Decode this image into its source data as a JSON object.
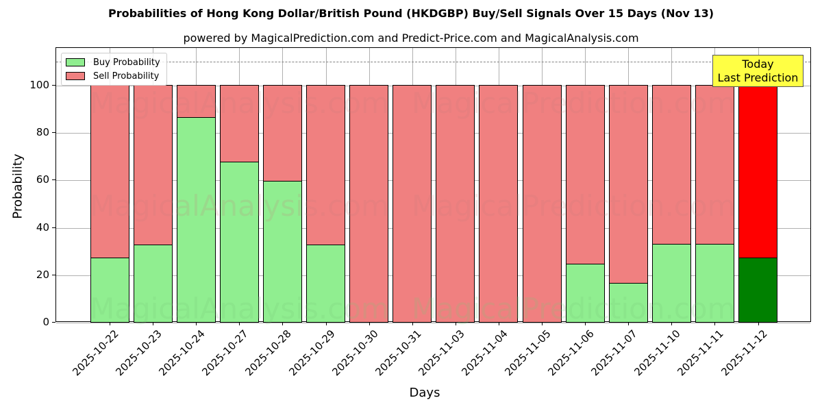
{
  "chart_data": {
    "type": "bar",
    "stacked": true,
    "title": "Probabilities of Hong Kong Dollar/British Pound (HKDGBP) Buy/Sell Signals Over 15 Days (Nov 13)",
    "subtitle": "powered by MagicalPrediction.com and Predict-Price.com and MagicalAnalysis.com",
    "xlabel": "Days",
    "ylabel": "Probability",
    "ylim": [
      0,
      115
    ],
    "yticks": [
      0,
      20,
      40,
      60,
      80,
      100
    ],
    "grid": true,
    "legend_position": "upper left",
    "reference_line": {
      "y": 110,
      "style": "dashed",
      "color": "#808080"
    },
    "categories": [
      "2025-10-22",
      "2025-10-23",
      "2025-10-24",
      "2025-10-27",
      "2025-10-28",
      "2025-10-29",
      "2025-10-30",
      "2025-10-31",
      "2025-11-03",
      "2025-11-04",
      "2025-11-05",
      "2025-11-06",
      "2025-11-07",
      "2025-11-10",
      "2025-11-11",
      "2025-11-12"
    ],
    "series": [
      {
        "name": "Buy Probability",
        "color": "#90ee90",
        "values": [
          27.2,
          32.7,
          86.4,
          67.6,
          59.5,
          32.7,
          0,
          0,
          0,
          0,
          0,
          24.6,
          16.5,
          32.9,
          32.9,
          27.2
        ]
      },
      {
        "name": "Sell Probability",
        "color": "#f08080",
        "values": [
          72.8,
          67.3,
          13.6,
          32.4,
          40.5,
          67.3,
          100,
          100,
          100,
          100,
          100,
          75.4,
          83.5,
          67.1,
          67.1,
          72.8
        ]
      }
    ],
    "highlight": {
      "index": 15,
      "buy_color": "#008000",
      "sell_color": "#ff0000"
    },
    "annotation": {
      "text_line1": "Today",
      "text_line2": "Last Prediction",
      "background": "#ffff44"
    },
    "watermarks": [
      "MagicalAnalysis.com",
      "MagicalPrediction.com"
    ]
  },
  "legend": {
    "buy": "Buy Probability",
    "sell": "Sell Probability"
  },
  "annotation": {
    "line1": "Today",
    "line2": "Last Prediction"
  }
}
